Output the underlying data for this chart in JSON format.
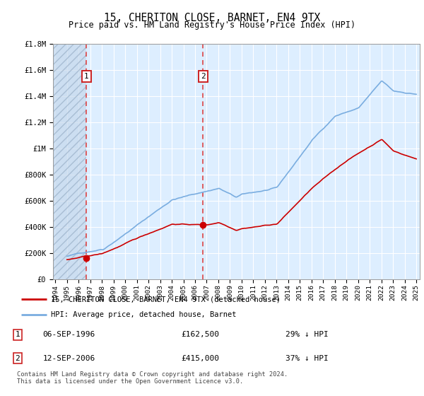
{
  "title": "15, CHERITON CLOSE, BARNET, EN4 9TX",
  "subtitle": "Price paid vs. HM Land Registry's House Price Index (HPI)",
  "ylim": [
    0,
    1800000
  ],
  "yticks": [
    0,
    200000,
    400000,
    600000,
    800000,
    1000000,
    1200000,
    1400000,
    1600000,
    1800000
  ],
  "ytick_labels": [
    "£0",
    "£200K",
    "£400K",
    "£600K",
    "£800K",
    "£1M",
    "£1.2M",
    "£1.4M",
    "£1.6M",
    "£1.8M"
  ],
  "background_color": "#ffffff",
  "plot_bg_color": "#ddeeff",
  "grid_color": "#ffffff",
  "purchase1_date": "06-SEP-1996",
  "purchase1_price": 162500,
  "purchase1_hpi_diff": "29% ↓ HPI",
  "purchase2_date": "12-SEP-2006",
  "purchase2_price": 415000,
  "purchase2_hpi_diff": "37% ↓ HPI",
  "legend_line1": "15, CHERITON CLOSE, BARNET, EN4 9TX (detached house)",
  "legend_line2": "HPI: Average price, detached house, Barnet",
  "footer": "Contains HM Land Registry data © Crown copyright and database right 2024.\nThis data is licensed under the Open Government Licence v3.0.",
  "line_color_red": "#cc0000",
  "line_color_blue": "#7aade0",
  "vline1_x": 1996.67,
  "vline2_x": 2006.67,
  "xlim": [
    1993.8,
    2025.3
  ]
}
